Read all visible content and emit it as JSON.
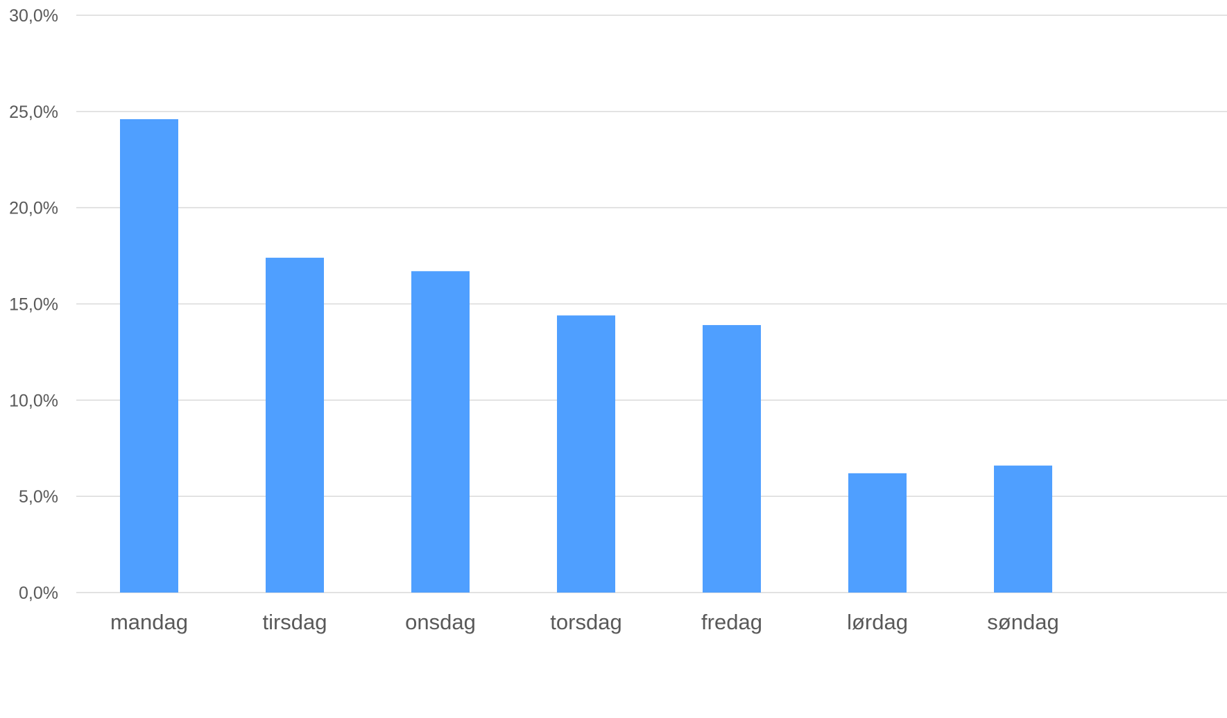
{
  "chart_data": {
    "type": "bar",
    "title": "",
    "xlabel": "",
    "ylabel": "",
    "categories": [
      "mandag",
      "tirsdag",
      "onsdag",
      "torsdag",
      "fredag",
      "lørdag",
      "søndag"
    ],
    "values": [
      24.6,
      17.4,
      16.7,
      14.4,
      13.9,
      6.2,
      6.6
    ],
    "value_unit": "percent",
    "ylim": [
      0,
      30
    ],
    "yticks": [
      0,
      5,
      10,
      15,
      20,
      25,
      30
    ],
    "ytick_labels": [
      "0,0%",
      "5,0%",
      "10,0%",
      "15,0%",
      "20,0%",
      "25,0%",
      "30,0%"
    ],
    "grid": true,
    "legend": "none",
    "colors": {
      "bar": "#4f9fff",
      "grid": "#d9d9d9",
      "text": "#595959"
    }
  }
}
